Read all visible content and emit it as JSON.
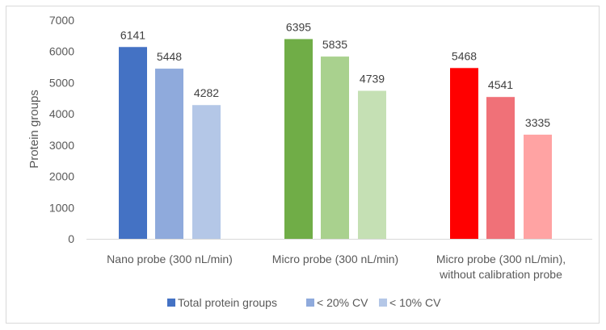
{
  "chart_data": {
    "type": "bar",
    "title": "",
    "xlabel": "",
    "ylabel": "Protein groups",
    "ylim": [
      0,
      7000
    ],
    "yticks": [
      0,
      1000,
      2000,
      3000,
      4000,
      5000,
      6000,
      7000
    ],
    "grid": false,
    "legend_position": "bottom",
    "categories": [
      [
        "Nano probe (300 nL/min)"
      ],
      [
        "Micro probe (300 nL/min)"
      ],
      [
        "Micro probe (300 nL/min),",
        "without calibration probe"
      ]
    ],
    "series": [
      {
        "name": "Total protein groups",
        "values": [
          6141,
          6395,
          5468
        ]
      },
      {
        "name": "< 20% CV",
        "values": [
          5448,
          5835,
          4541
        ]
      },
      {
        "name": "< 10% CV",
        "values": [
          4282,
          4739,
          3335
        ]
      }
    ],
    "bar_colors": [
      [
        "#4472c4",
        "#8faadc",
        "#b4c7e7"
      ],
      [
        "#70ad47",
        "#a9d18e",
        "#c5e0b4"
      ],
      [
        "#ff0000",
        "#f07178",
        "#ffa3a3"
      ]
    ],
    "legend_colors": [
      "#4472c4",
      "#8faadc",
      "#b4c7e7"
    ]
  }
}
